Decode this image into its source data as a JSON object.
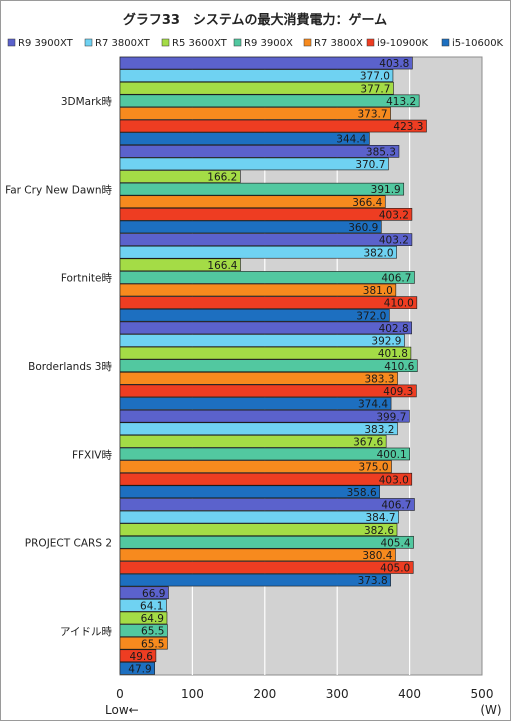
{
  "chart_data": {
    "type": "bar",
    "orientation": "horizontal",
    "title": "グラフ33　システムの最大消費電力：ゲーム",
    "xlabel_left": "Low←",
    "xunit": "(W)",
    "xlim": [
      0,
      500
    ],
    "xticks": [
      0,
      100,
      200,
      300,
      400,
      500
    ],
    "grid": true,
    "legend_position": "top",
    "categories": [
      "3DMark時",
      "Far Cry New Dawn時",
      "Fortnite時",
      "Borderlands 3時",
      "FFXIV時",
      "PROJECT CARS 2",
      "アイドル時"
    ],
    "series": [
      {
        "name": "R9 3900XT",
        "color": "#5b62cc",
        "values": [
          403.8,
          385.3,
          403.2,
          402.8,
          399.7,
          406.7,
          66.9
        ]
      },
      {
        "name": "R7 3800XT",
        "color": "#6fd2f2",
        "values": [
          377.0,
          370.7,
          382.0,
          392.9,
          383.2,
          384.7,
          64.1
        ]
      },
      {
        "name": "R5 3600XT",
        "color": "#a4dc46",
        "values": [
          377.7,
          166.2,
          166.4,
          401.8,
          367.6,
          382.6,
          64.9
        ]
      },
      {
        "name": "R9 3900X",
        "color": "#52c8a0",
        "values": [
          413.2,
          391.9,
          406.7,
          410.6,
          400.1,
          405.4,
          65.5
        ]
      },
      {
        "name": "R7 3800X",
        "color": "#f78a1e",
        "values": [
          373.7,
          366.4,
          381.0,
          383.3,
          375.0,
          380.4,
          65.5
        ]
      },
      {
        "name": "i9-10900K",
        "color": "#ee3d22",
        "values": [
          423.3,
          403.2,
          410.0,
          409.3,
          403.0,
          405.0,
          49.6
        ]
      },
      {
        "name": "i5-10600K",
        "color": "#1d6fc0",
        "values": [
          344.4,
          360.9,
          372.0,
          374.4,
          358.6,
          373.8,
          47.9
        ]
      }
    ]
  }
}
